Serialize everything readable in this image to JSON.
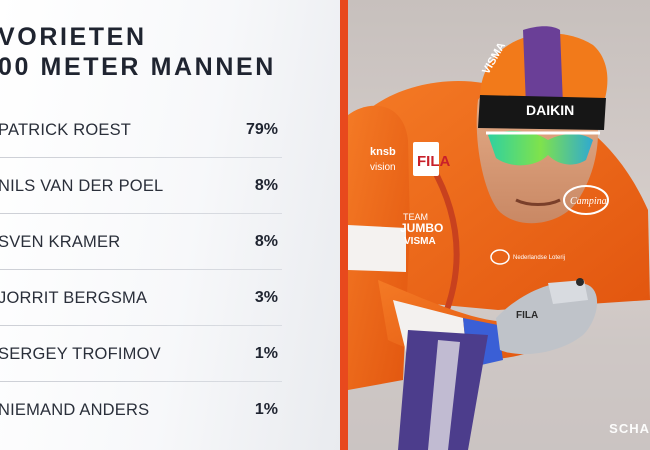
{
  "title": {
    "line1": "VORIETEN",
    "line2": "00 METER MANNEN"
  },
  "entries": [
    {
      "name": "PATRICK ROEST",
      "pct": "79%"
    },
    {
      "name": "NILS VAN DER POEL",
      "pct": "8%"
    },
    {
      "name": "SVEN KRAMER",
      "pct": "8%"
    },
    {
      "name": "JORRIT BERGSMA",
      "pct": "3%"
    },
    {
      "name": "SERGEY TROFIMOV",
      "pct": "1%"
    },
    {
      "name": "NIEMAND ANDERS",
      "pct": "1%"
    }
  ],
  "photo": {
    "helmet_text": "VISMA",
    "cap_brand": "DAIKIN",
    "suit_logo_fila": "FILA",
    "suit_team_line1": "TEAM",
    "suit_team_line2": "JUMBO",
    "suit_team_line3": "VISMA",
    "suit_knsb": "knsb",
    "suit_knsb2": "vision",
    "suit_campina": "Campina",
    "glove_fila": "FILA",
    "suit_lottery": "Nederlandse Loterij",
    "watermark": "SCHA"
  },
  "colors": {
    "accent_divider": "#e8491d",
    "suit_orange": "#f26a1b",
    "helmet_orange": "#f27a1a",
    "helmet_purple": "#6a3f97",
    "text_dark": "#1f2430"
  }
}
